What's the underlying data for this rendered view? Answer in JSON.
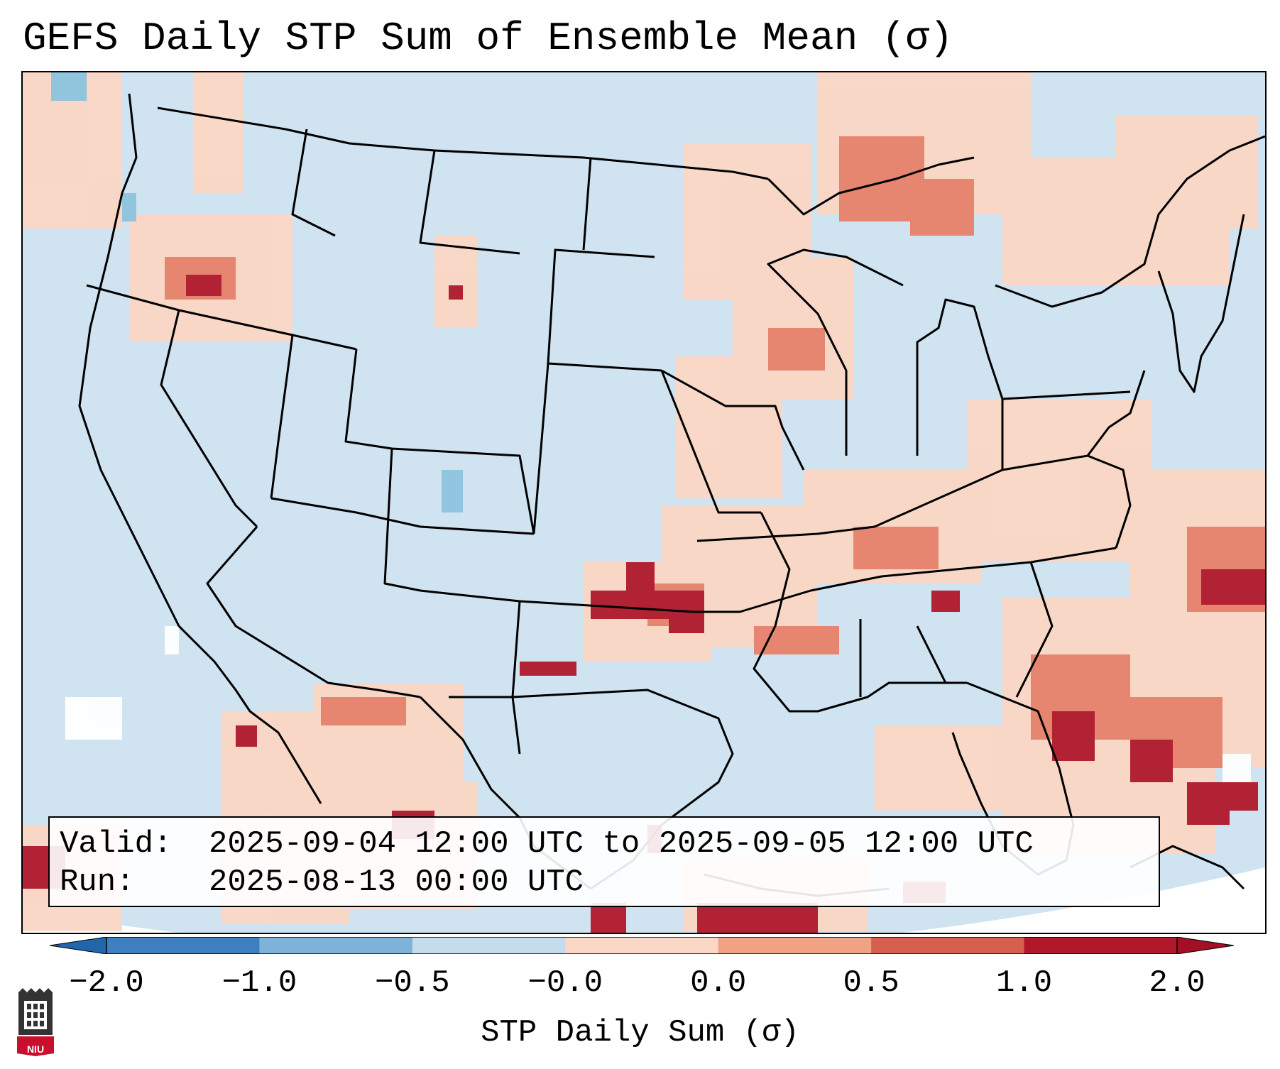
{
  "title": "GEFS Daily STP Sum of Ensemble Mean (σ)",
  "info": {
    "valid_label": "Valid:",
    "valid_value": "2025-09-04 12:00 UTC to 2025-09-05 12:00 UTC",
    "run_label": "Run:",
    "run_value": "2025-08-13 00:00 UTC"
  },
  "colorbar": {
    "label": "STP Daily Sum (σ)",
    "ticks": [
      "−2.0",
      "−1.0",
      "−0.5",
      "−0.0",
      "0.0",
      "0.5",
      "1.0",
      "2.0"
    ],
    "colors": [
      "#3d7fbf",
      "#7fb2d8",
      "#c4dcec",
      "#f7f7f7",
      "#fbd7c5",
      "#f0a285",
      "#d5604f",
      "#b0182a"
    ],
    "under_color": "#2166ac",
    "over_color": "#a50f26"
  },
  "logo": {
    "text": "NIU"
  }
}
